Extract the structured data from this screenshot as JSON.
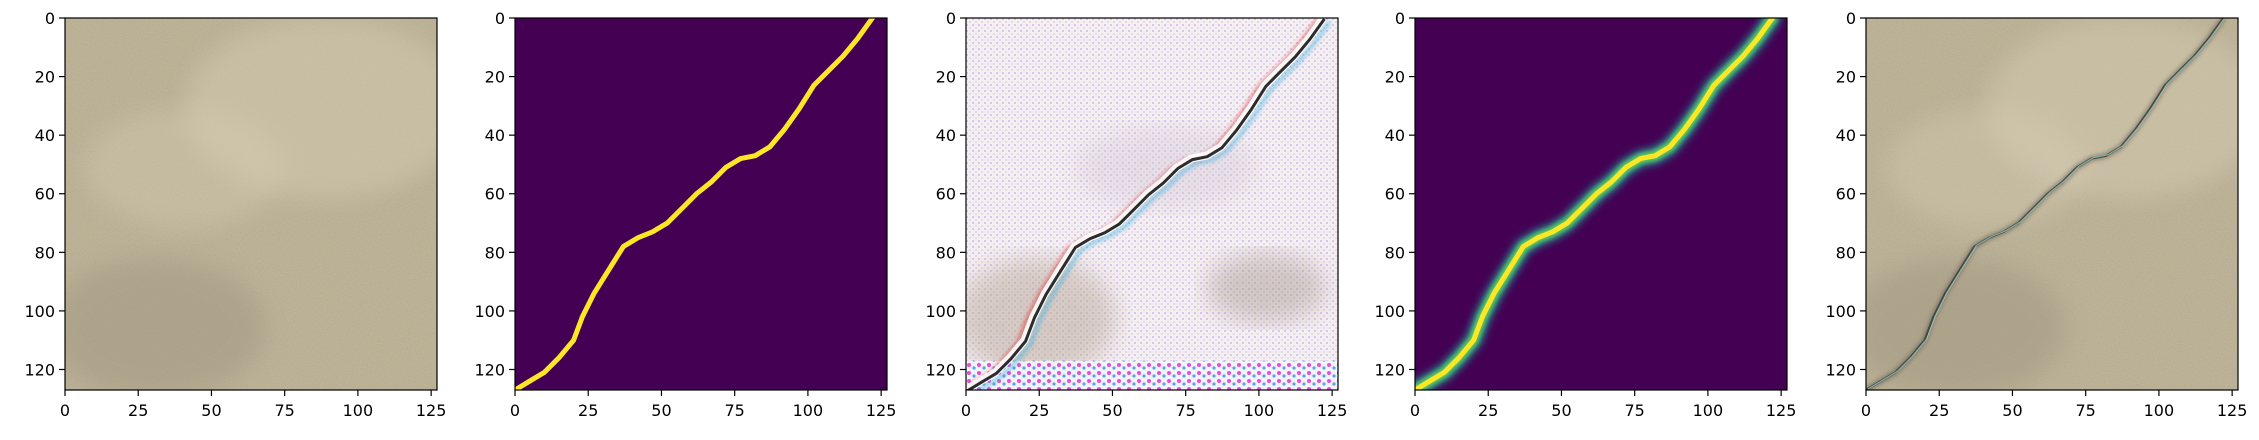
{
  "figure": {
    "panel_count": 5,
    "axis_limits": {
      "x": [
        0,
        127
      ],
      "y": [
        0,
        127
      ]
    },
    "x_ticks": [
      "0",
      "25",
      "50",
      "75",
      "100",
      "125"
    ],
    "y_ticks": [
      "0",
      "20",
      "40",
      "60",
      "80",
      "100",
      "120"
    ],
    "panels": [
      {
        "kind": "photo",
        "description": ""
      },
      {
        "kind": "binary-mask"
      },
      {
        "kind": "generated-rgb"
      },
      {
        "kind": "soft-mask"
      },
      {
        "kind": "photo-overlay"
      }
    ],
    "colors": {
      "concrete_light": "#d8cfb6",
      "concrete_mid": "#c2b89c",
      "concrete_dark": "#9e9480",
      "mask_background": "#440154",
      "mask_line": "#fde725",
      "soft_mid": "#21918c",
      "soft_edge": "#5ec962"
    }
  },
  "chart_data": {
    "type": "heatmap",
    "title": "",
    "xlabel": "",
    "ylabel": "",
    "xlim": [
      0,
      127
    ],
    "ylim": [
      127,
      0
    ],
    "crack_path": {
      "x": [
        0,
        5,
        10,
        15,
        20,
        23,
        27,
        32,
        37,
        42,
        47,
        52,
        57,
        62,
        67,
        72,
        77,
        82,
        87,
        92,
        97,
        102,
        107,
        112,
        117,
        122
      ],
      "y": [
        127,
        124,
        121,
        116,
        110,
        102,
        94,
        86,
        78,
        75,
        73,
        70,
        65,
        60,
        56,
        51,
        48,
        47,
        44,
        38,
        31,
        23,
        18,
        13,
        7,
        0
      ]
    }
  }
}
